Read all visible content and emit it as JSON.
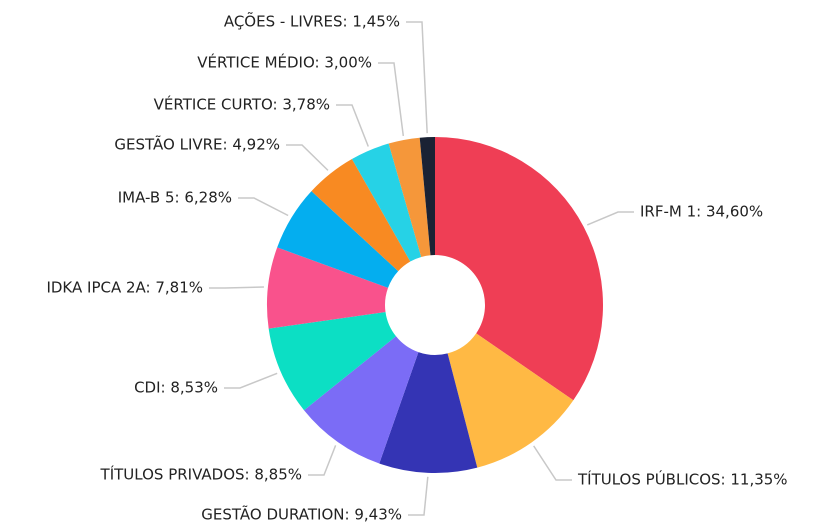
{
  "chart_data": {
    "type": "donut",
    "values": [
      34.6,
      11.35,
      9.43,
      8.85,
      8.53,
      7.81,
      6.28,
      4.92,
      3.78,
      3.0,
      1.45
    ],
    "value_labels": [
      "IRF-M 1: 34,60%",
      "TÍTULOS PÚBLICOS: 11,35%",
      "GESTÃO DURATION: 9,43%",
      "TÍTULOS PRIVADOS: 8,85%",
      "CDI: 8,53%",
      "IDKA IPCA 2A: 7,81%",
      "IMA-B 5: 6,28%",
      "GESTÃO LIVRE: 4,92%",
      "VÉRTICE CURTO: 3,78%",
      "VÉRTICE MÉDIO: 3,00%",
      "AÇÕES - LIVRES: 1,45%"
    ],
    "colors": [
      "#ef3e55",
      "#ffb944",
      "#3434b4",
      "#7b6cf6",
      "#0cdfc4",
      "#f9528c",
      "#04aeef",
      "#f88a22",
      "#26d2e6",
      "#f5973a",
      "#1a2234"
    ]
  }
}
